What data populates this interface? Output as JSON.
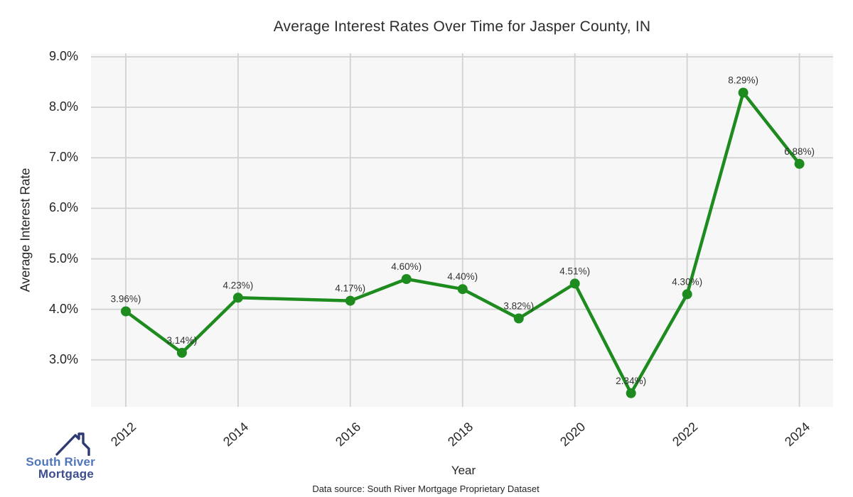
{
  "title": "Average Interest Rates Over Time for Jasper County, IN",
  "footer": "Data source: South River Mortgage Proprietary Dataset",
  "logo": {
    "line1": "South River",
    "line2": "Mortgage",
    "roof_icon": "house-roof-with-chimney",
    "color_line1": "#4f75bd",
    "color_line2": "#3d4e91",
    "color_roof": "#2e3a72"
  },
  "colors": {
    "line": "#1e8b1e",
    "marker": "#1e8b1e",
    "grid": "#d2d2d2",
    "plot_background": "#f7f7f7",
    "page_background": "#ffffff",
    "text": "#262626",
    "point_label": "#333333"
  },
  "chart_data": {
    "type": "line",
    "title": "Average Interest Rates Over Time for Jasper County, IN",
    "xlabel": "Year",
    "ylabel": "Average Interest Rate",
    "x": [
      2012,
      2013,
      2014,
      2016,
      2017,
      2018,
      2019,
      2020,
      2021,
      2022,
      2023,
      2024
    ],
    "y": [
      3.96,
      3.14,
      4.23,
      4.17,
      4.6,
      4.4,
      3.82,
      4.51,
      2.34,
      4.3,
      8.29,
      6.88
    ],
    "point_labels": [
      "3.96%)",
      "3.14%)",
      "4.23%)",
      "4.17%)",
      "4.60%)",
      "4.40%)",
      "3.82%)",
      "4.51%)",
      "2.34%)",
      "4.30%)",
      "8.29%)",
      "6.88%)"
    ],
    "xtick_values": [
      2012,
      2014,
      2016,
      2018,
      2020,
      2022,
      2024
    ],
    "xtick_labels": [
      "2012",
      "2014",
      "2016",
      "2018",
      "2020",
      "2022",
      "2024"
    ],
    "ytick_values": [
      9,
      8,
      7,
      6,
      5,
      4,
      3
    ],
    "ytick_labels": [
      "9.0%",
      "8.0%",
      "7.0%",
      "6.0%",
      "5.0%",
      "4.0%",
      "3.0%"
    ],
    "xlim": [
      2011.38,
      2024.6
    ],
    "ylim": [
      2.07,
      9.07
    ],
    "grid": true,
    "legend": null
  }
}
